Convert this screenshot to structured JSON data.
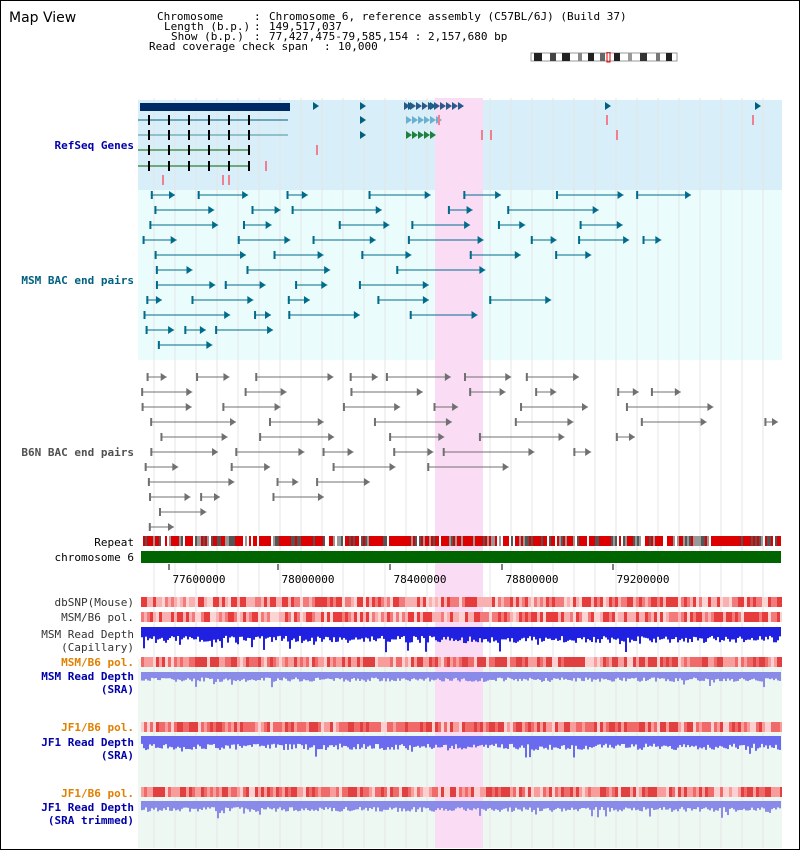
{
  "app": {
    "title": "Map View"
  },
  "info": {
    "chromosome_label": "Chromosome",
    "chromosome_value": "Chromosome 6, reference assembly (C57BL/6J) (Build 37)",
    "length_label": "Length (b.p.)",
    "length_value": "149,517,037",
    "show_label": "Show (b.p.)",
    "show_value": "77,427,475-79,585,154 : 2,157,680 bp",
    "coverage_label": "Read coverage check span",
    "coverage_value": "10,000"
  },
  "tracks": {
    "refseq": "RefSeq Genes",
    "msm_bac": "MSM BAC end pairs",
    "b6n_bac": "B6N BAC end pairs",
    "repeat": "Repeat",
    "chromosome": "chromosome 6",
    "dbsnp": "dbSNP(Mouse)",
    "msm_b6_pol": "MSM/B6 pol.",
    "msm_read_depth_cap": "MSM Read Depth",
    "msm_read_depth_cap_sub": "(Capillary)",
    "msm_b6_pol2": "MSM/B6 pol.",
    "msm_read_depth_sra": "MSM Read Depth",
    "msm_read_depth_sra_sub": "(SRA)",
    "jf1_b6_pol": "JF1/B6 pol.",
    "jf1_read_depth": "JF1 Read Depth",
    "jf1_read_depth_sub": "(SRA)",
    "jf1_b6_pol2": "JF1/B6 pol.",
    "jf1_read_depth_trim": "JF1 Read Depth",
    "jf1_read_depth_trim_sub": "(SRA trimmed)"
  },
  "axis": {
    "ticks": [
      "77600000",
      "78000000",
      "78400000",
      "78800000",
      "79200000"
    ]
  },
  "colors": {
    "refseq_label": "#0000aa",
    "msm_label": "#006080",
    "b6n_label": "#505050",
    "pol_label": "#e08000",
    "depth_label": "#0000aa",
    "highlight": "#fadcf5",
    "chromosome_bar": "#006400"
  }
}
